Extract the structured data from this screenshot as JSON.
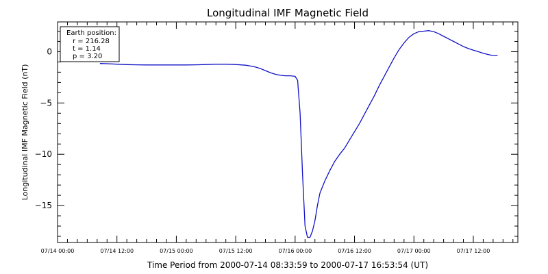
{
  "chart_data": {
    "type": "line",
    "title": "Longitudinal IMF Magnetic Field",
    "xlabel": "Time Period from 2000-07-14 08:33:59 to 2000-07-17 16:53:54 (UT)",
    "ylabel": "Longitudinal IMF Magnetic Field (nT)",
    "x_unit": "hours after 07/14 00:00",
    "xlim": [
      0,
      93
    ],
    "ylim": [
      -18.6,
      2.9
    ],
    "xticks": [
      0,
      12,
      24,
      36,
      48,
      60,
      72,
      84
    ],
    "xtick_labels": [
      "07/14 00:00",
      "07/14 12:00",
      "07/15 00:00",
      "07/15 12:00",
      "07/16 00:00",
      "07/16 12:00",
      "07/17 00:00",
      "07/17 12:00"
    ],
    "yticks": [
      -15,
      -10,
      -5,
      0
    ],
    "ytick_labels": [
      "−15",
      "−10",
      "−5",
      "0"
    ],
    "grid": false,
    "line_color": "#1010c8",
    "annotation": {
      "heading": "Earth position:",
      "lines": [
        "r = 216.28",
        "t = 1.14",
        "p = 3.20"
      ]
    },
    "series": [
      {
        "x": [
          8.57,
          10,
          12,
          14,
          16,
          18,
          20,
          22,
          24,
          26,
          28,
          30,
          32,
          34,
          36,
          38,
          39,
          40,
          41,
          42,
          43,
          44,
          45,
          46,
          47,
          48,
          48.5,
          49,
          49.5,
          50,
          50.5,
          51,
          51.5,
          52,
          52.5,
          53,
          54,
          55,
          56,
          57,
          58,
          59,
          60,
          61,
          62,
          63,
          64,
          65,
          66,
          67,
          68,
          69,
          70,
          71,
          72,
          73,
          74,
          75,
          76,
          77,
          78,
          79,
          80,
          81,
          82,
          83,
          84,
          85,
          86,
          87,
          88,
          88.9
        ],
        "y": [
          -1.15,
          -1.17,
          -1.22,
          -1.26,
          -1.28,
          -1.29,
          -1.29,
          -1.29,
          -1.29,
          -1.29,
          -1.28,
          -1.25,
          -1.22,
          -1.22,
          -1.25,
          -1.32,
          -1.4,
          -1.5,
          -1.65,
          -1.85,
          -2.05,
          -2.2,
          -2.3,
          -2.35,
          -2.35,
          -2.4,
          -2.8,
          -6.0,
          -12.0,
          -17.0,
          -18.1,
          -18.1,
          -17.5,
          -16.5,
          -15.0,
          -13.8,
          -12.6,
          -11.6,
          -10.7,
          -10.0,
          -9.4,
          -8.6,
          -7.8,
          -7.0,
          -6.1,
          -5.2,
          -4.3,
          -3.3,
          -2.4,
          -1.5,
          -0.6,
          0.2,
          0.85,
          1.4,
          1.75,
          1.95,
          2.0,
          2.05,
          1.95,
          1.75,
          1.5,
          1.25,
          1.0,
          0.75,
          0.5,
          0.3,
          0.15,
          0.0,
          -0.15,
          -0.28,
          -0.38,
          -0.4
        ]
      }
    ]
  }
}
